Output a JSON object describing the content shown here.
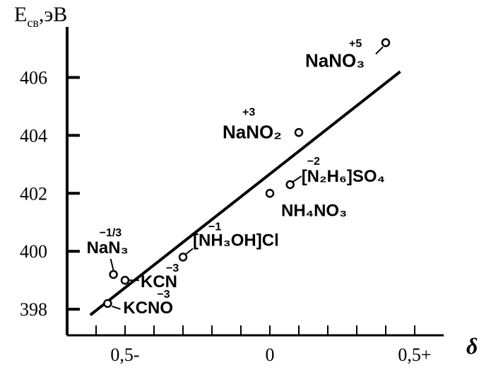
{
  "chart_data": {
    "type": "scatter",
    "ylabel": {
      "main": "E",
      "sub": "св",
      "unit": ",эВ"
    },
    "xlabel": "δ",
    "xlim": [
      -0.7,
      0.6
    ],
    "ylim": [
      397.1,
      407.5
    ],
    "x_ticks": [
      {
        "value": -0.5,
        "label": "0,5-"
      },
      {
        "value": 0,
        "label": "0"
      },
      {
        "value": 0.5,
        "label": "0,5+"
      }
    ],
    "x_minor_ticks": [
      -0.6,
      -0.5,
      -0.4,
      -0.3,
      -0.2,
      -0.1,
      0,
      0.1,
      0.2,
      0.3,
      0.4,
      0.5
    ],
    "y_ticks": [
      {
        "value": 398,
        "label": "398"
      },
      {
        "value": 400,
        "label": "400"
      },
      {
        "value": 402,
        "label": "402"
      },
      {
        "value": 404,
        "label": "404"
      },
      {
        "value": 406,
        "label": "406"
      }
    ],
    "fit_line": {
      "x": [
        -0.62,
        0.45
      ],
      "y": [
        397.8,
        406.2
      ]
    },
    "points": [
      {
        "name": "KCNO",
        "label": "KCNO",
        "ox": "−3",
        "x": -0.56,
        "y": 398.2
      },
      {
        "name": "KCN",
        "label": "KCN",
        "ox": "",
        "x": -0.5,
        "y": 399.0
      },
      {
        "name": "NaN3",
        "label": "NaN₃",
        "ox": "−1/3",
        "x": -0.54,
        "y": 399.2
      },
      {
        "name": "NH3OHCl",
        "label": "[NH₃OH]Cl",
        "ox": "−1",
        "x": -0.3,
        "y": 399.8
      },
      {
        "name": "NH4NO3",
        "label": "NH₄NO₃",
        "ox": "",
        "x": 0.0,
        "y": 402.0
      },
      {
        "name": "N2H6SO4",
        "label": "[N₂H₆]SO₄",
        "ox": "−2",
        "x": 0.07,
        "y": 402.3
      },
      {
        "name": "NaNO2",
        "label": "NaNO₂",
        "ox": "+3",
        "x": 0.1,
        "y": 404.1
      },
      {
        "name": "NaNO3",
        "label": "NaNO₃",
        "ox": "+5",
        "x": 0.4,
        "y": 407.2
      }
    ],
    "extra_labels": [
      {
        "name": "kcn-ox",
        "text": "−3"
      }
    ],
    "grid": false
  }
}
